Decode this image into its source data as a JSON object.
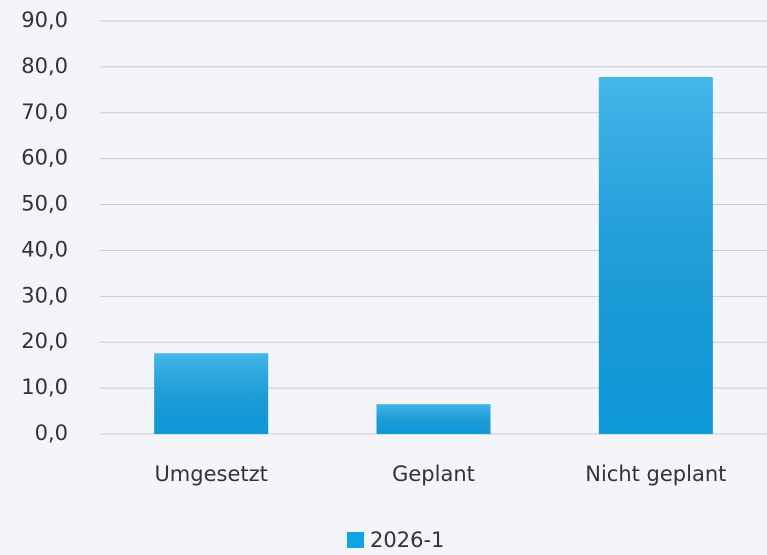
{
  "chart_data": {
    "type": "bar",
    "categories": [
      "Umgesetzt",
      "Geplant",
      "Nicht geplant"
    ],
    "series": [
      {
        "name": "2026-1",
        "color": "#11a3e6",
        "values": [
          17.6,
          6.5,
          77.8
        ]
      }
    ],
    "ylim": [
      0,
      90
    ],
    "yticks": [
      {
        "value": 0,
        "label": "0,0"
      },
      {
        "value": 10,
        "label": "10,0"
      },
      {
        "value": 20,
        "label": "20,0"
      },
      {
        "value": 30,
        "label": "30,0"
      },
      {
        "value": 40,
        "label": "40,0"
      },
      {
        "value": 50,
        "label": "50,0"
      },
      {
        "value": 60,
        "label": "60,0"
      },
      {
        "value": 70,
        "label": "70,0"
      },
      {
        "value": 80,
        "label": "80,0"
      },
      {
        "value": 90,
        "label": "90,0"
      }
    ],
    "grid": true,
    "legend": "bottom"
  }
}
